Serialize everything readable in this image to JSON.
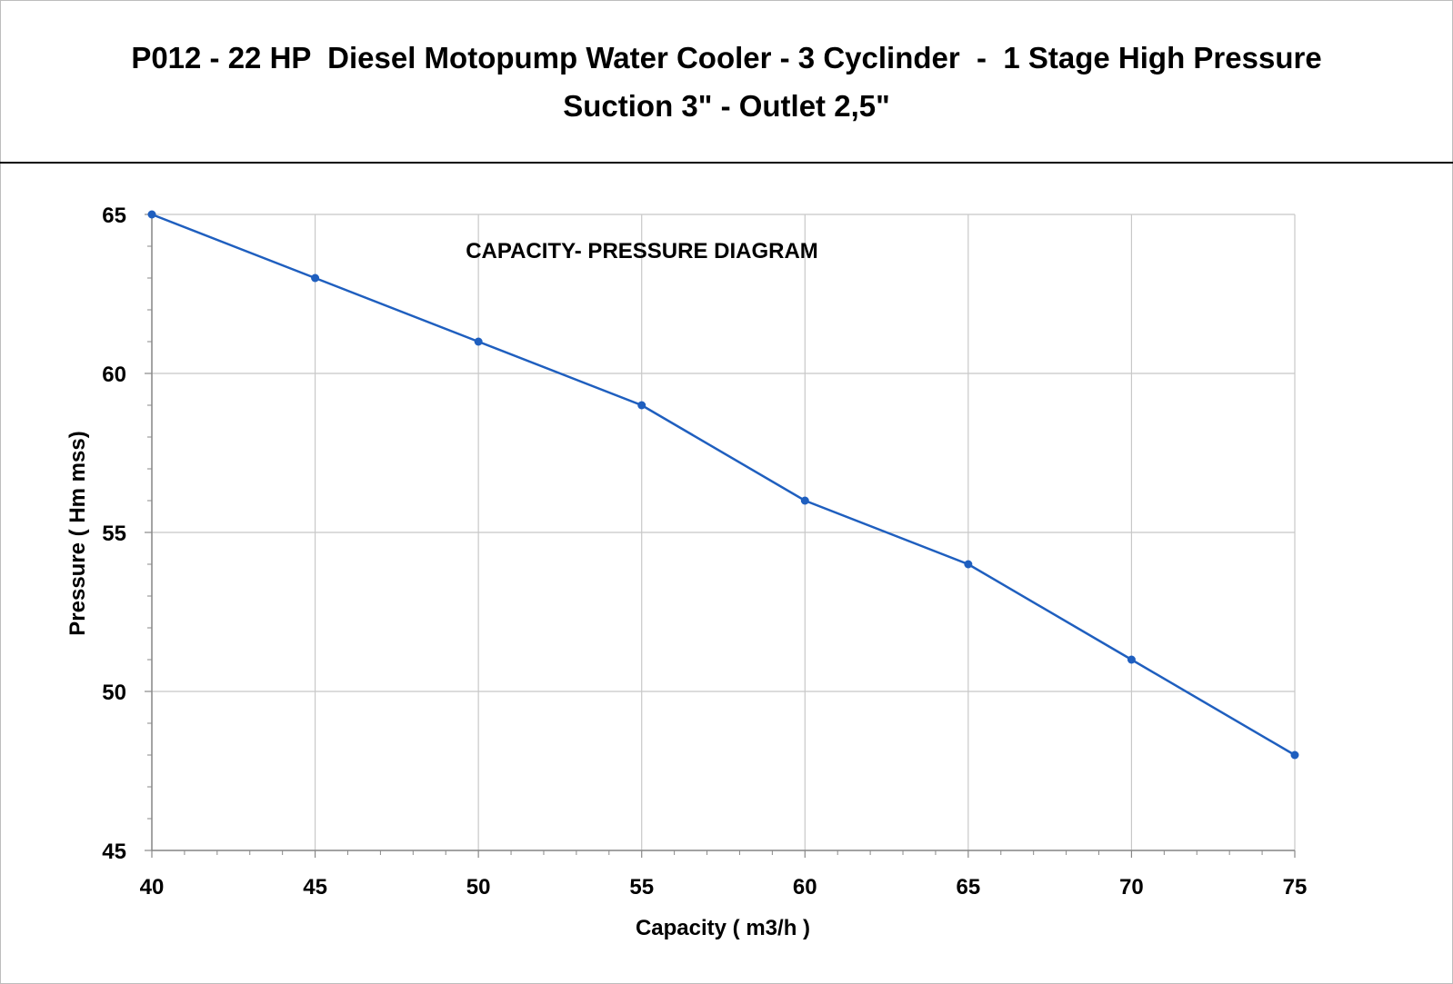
{
  "header": {
    "title_line1": "P012 - 22 HP  Diesel Motopump Water Cooler - 3 Cyclinder  -  1 Stage High Pressure",
    "title_line2": "Suction 3\" - Outlet 2,5\""
  },
  "chart_data": {
    "type": "line",
    "title": "CAPACITY- PRESSURE DIAGRAM",
    "xlabel": "Capacity ( m3/h )",
    "ylabel": "Pressure ( Hm mss)",
    "xlim": [
      40,
      75
    ],
    "ylim": [
      45,
      65
    ],
    "xticks": [
      40,
      45,
      50,
      55,
      60,
      65,
      70,
      75
    ],
    "yticks": [
      45,
      50,
      55,
      60,
      65
    ],
    "grid": true,
    "series": [
      {
        "color": "#1f5fbf",
        "x": [
          40,
          45,
          50,
          55,
          60,
          65,
          70,
          75
        ],
        "y": [
          65,
          63,
          61,
          59,
          56,
          54,
          51,
          48
        ]
      }
    ]
  }
}
